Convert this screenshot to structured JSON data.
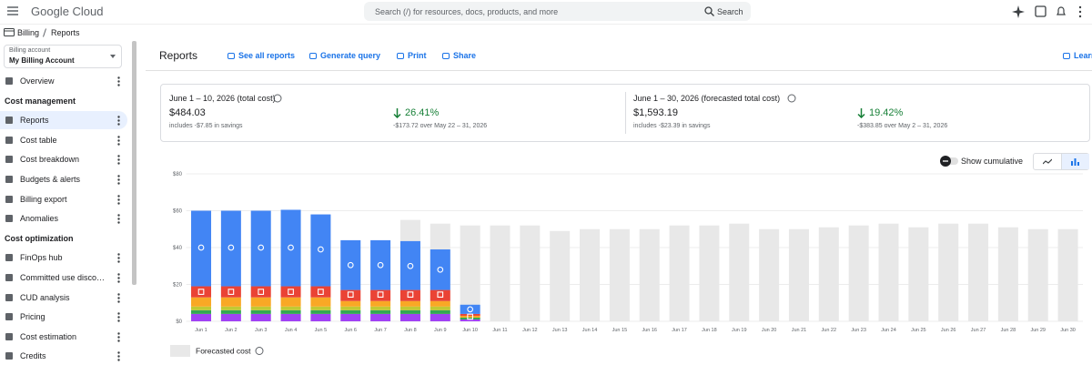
{
  "topbar": {
    "brand": "Google Cloud",
    "search_placeholder": "Search (/) for resources, docs, products, and more",
    "search_button": "Search"
  },
  "breadcrumb": [
    "Billing",
    "Reports"
  ],
  "sidebar": {
    "account_label": "Billing account",
    "account_name": "My Billing Account",
    "sections": [
      {
        "items": [
          "Overview"
        ]
      },
      {
        "title": "Cost management",
        "items": [
          "Reports",
          "Cost table",
          "Cost breakdown",
          "Budgets & alerts",
          "Billing export",
          "Anomalies"
        ]
      },
      {
        "title": "Cost optimization",
        "items": [
          "FinOps hub",
          "Committed use discounts",
          "CUD analysis",
          "Pricing",
          "Cost estimation",
          "Credits"
        ]
      }
    ],
    "active": "Reports"
  },
  "header": {
    "title": "Reports",
    "actions": [
      "See all reports",
      "Generate query",
      "Print",
      "Share",
      "Learn"
    ]
  },
  "summary": [
    {
      "title": "June 1 – 10, 2026 (total cost)",
      "amount": "$484.03",
      "savings": "includes -$7.85 in savings",
      "change": "26.41%",
      "change_note": "-$173.72 over May 22 – 31, 2026"
    },
    {
      "title": "June 1 – 30, 2026 (forecasted total cost)",
      "amount": "$1,593.19",
      "savings": "includes -$23.39 in savings",
      "change": "19.42%",
      "change_note": "-$383.85 over May 2 – 31, 2026"
    }
  ],
  "controls": {
    "cumulative": "Show cumulative"
  },
  "chart_data": {
    "type": "bar",
    "stacked": true,
    "grid": true,
    "categories": [
      "Jun 1",
      "Jun 2",
      "Jun 3",
      "Jun 4",
      "Jun 5",
      "Jun 6",
      "Jun 7",
      "Jun 8",
      "Jun 9",
      "Jun 10",
      "Jun 11",
      "Jun 12",
      "Jun 13",
      "Jun 14",
      "Jun 15",
      "Jun 16",
      "Jun 17",
      "Jun 18",
      "Jun 19",
      "Jun 20",
      "Jun 21",
      "Jun 22",
      "Jun 23",
      "Jun 24",
      "Jun 25",
      "Jun 26",
      "Jun 27",
      "Jun 28",
      "Jun 29",
      "Jun 30"
    ],
    "ylim": [
      0,
      80
    ],
    "yticks": [
      {
        "value": 0,
        "label": "$0"
      },
      {
        "value": 20,
        "label": "$20"
      },
      {
        "value": 40,
        "label": "$40"
      },
      {
        "value": 60,
        "label": "$60"
      },
      {
        "value": 80,
        "label": "$80"
      }
    ],
    "series": [
      {
        "color": "#a142f4",
        "values": [
          4,
          4,
          4,
          4,
          4,
          4,
          4,
          4,
          4,
          1,
          null,
          null,
          null,
          null,
          null,
          null,
          null,
          null,
          null,
          null,
          null,
          null,
          null,
          null,
          null,
          null,
          null,
          null,
          null,
          null
        ]
      },
      {
        "color": "#34a853",
        "values": [
          2,
          2,
          2,
          2,
          2,
          2,
          2,
          2,
          2,
          1,
          null,
          null,
          null,
          null,
          null,
          null,
          null,
          null,
          null,
          null,
          null,
          null,
          null,
          null,
          null,
          null,
          null,
          null,
          null,
          null
        ]
      },
      {
        "color": "#c0ca33",
        "values": [
          2,
          2,
          2,
          2,
          2,
          2,
          2,
          2,
          2,
          0,
          null,
          null,
          null,
          null,
          null,
          null,
          null,
          null,
          null,
          null,
          null,
          null,
          null,
          null,
          null,
          null,
          null,
          null,
          null,
          null
        ]
      },
      {
        "color": "#f9a825",
        "values": [
          5,
          5,
          5,
          5,
          5,
          3,
          3,
          3,
          3,
          1,
          null,
          null,
          null,
          null,
          null,
          null,
          null,
          null,
          null,
          null,
          null,
          null,
          null,
          null,
          null,
          null,
          null,
          null,
          null,
          null
        ]
      },
      {
        "color": "#ea4335",
        "values": [
          6,
          6,
          6,
          6,
          6,
          6,
          6,
          6,
          6,
          1,
          null,
          null,
          null,
          null,
          null,
          null,
          null,
          null,
          null,
          null,
          null,
          null,
          null,
          null,
          null,
          null,
          null,
          null,
          null,
          null
        ]
      },
      {
        "color": "#4285f4",
        "values": [
          41,
          41,
          41,
          41.5,
          39,
          27,
          27,
          26.5,
          22,
          5,
          null,
          null,
          null,
          null,
          null,
          null,
          null,
          null,
          null,
          null,
          null,
          null,
          null,
          null,
          null,
          null,
          null,
          null,
          null,
          null
        ]
      }
    ],
    "forecast": {
      "name": "Forecasted cost",
      "color": "#e8e8e8",
      "values": [
        null,
        null,
        null,
        null,
        null,
        null,
        null,
        55,
        53,
        52,
        52,
        52,
        49,
        50,
        50,
        50,
        52,
        52,
        53,
        50,
        50,
        51,
        52,
        53,
        51,
        53,
        53,
        51,
        50,
        50
      ]
    },
    "markers": [
      {
        "shape": "circle",
        "color": "#ffffff",
        "values": [
          40,
          40,
          40,
          40,
          39,
          30.5,
          30.5,
          30,
          28,
          6.5,
          null,
          null,
          null,
          null,
          null,
          null,
          null,
          null,
          null,
          null,
          null,
          null,
          null,
          null,
          null,
          null,
          null,
          null,
          null,
          null
        ]
      },
      {
        "shape": "square",
        "color": "#ffffff",
        "values": [
          16,
          16,
          16,
          16,
          16,
          14.5,
          14.5,
          14.5,
          14.5,
          2.5,
          null,
          null,
          null,
          null,
          null,
          null,
          null,
          null,
          null,
          null,
          null,
          null,
          null,
          null,
          null,
          null,
          null,
          null,
          null,
          null
        ]
      }
    ],
    "legend": "bottom-left"
  }
}
